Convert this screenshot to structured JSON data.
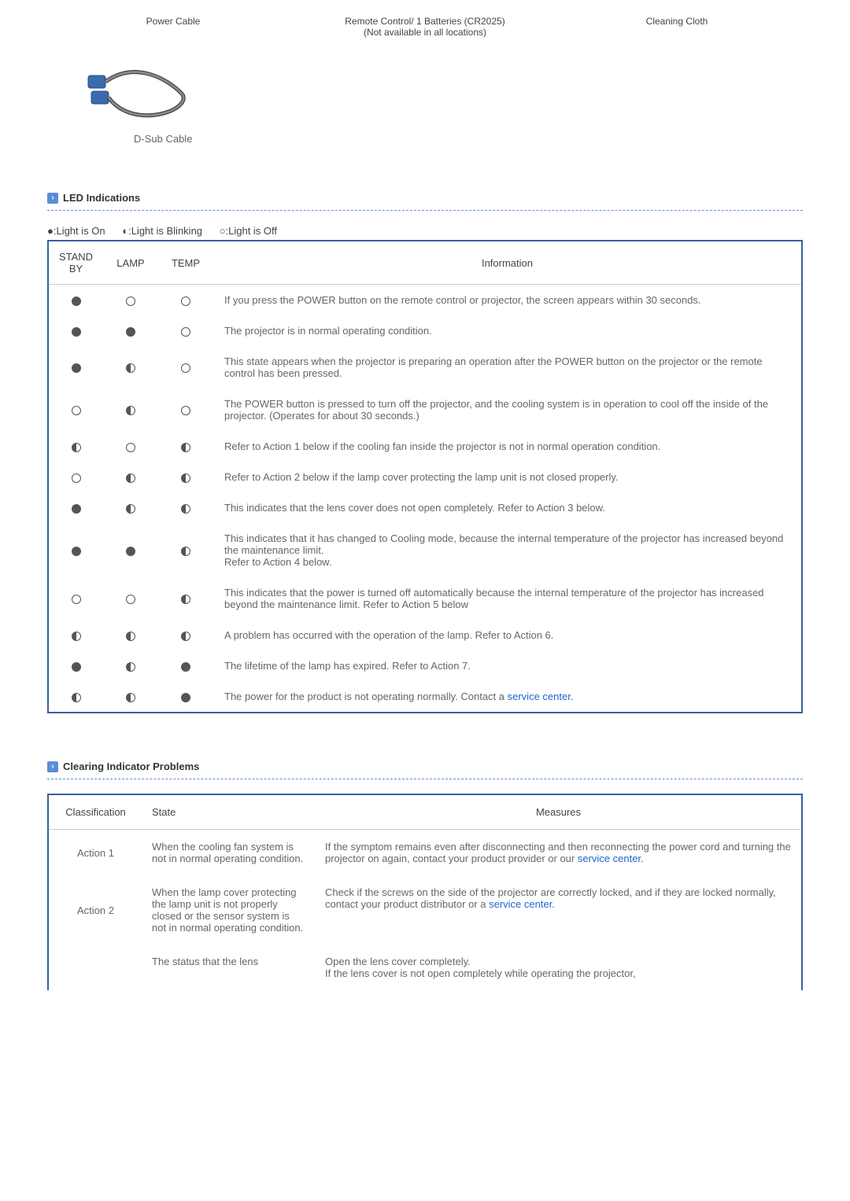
{
  "topLabels": {
    "left": "Power Cable",
    "mid_line1": "Remote Control/ 1 Batteries (CR2025)",
    "mid_line2": "(Not available in all locations)",
    "right": "Cleaning Cloth"
  },
  "cableCaption": "D-Sub Cable",
  "sections": {
    "led": "LED Indications",
    "clearing": "Clearing Indicator Problems"
  },
  "legend": {
    "on": "●:Light is On",
    "blink": "◐:Light is Blinking",
    "off": "○:Light is Off"
  },
  "ledHeaders": {
    "standby": "STAND BY",
    "lamp": "LAMP",
    "temp": "TEMP",
    "info": "Information"
  },
  "ledRows": [
    {
      "s": "on",
      "l": "off",
      "t": "off",
      "info": "If you press the POWER button on the remote control or projector, the screen appears within 30 seconds."
    },
    {
      "s": "on",
      "l": "on",
      "t": "off",
      "info": "The projector is in normal operating condition."
    },
    {
      "s": "on",
      "l": "blink",
      "t": "off",
      "info": "This state appears when the projector is preparing an operation after the POWER button on the projector or the remote control has been pressed."
    },
    {
      "s": "off",
      "l": "blink",
      "t": "off",
      "info": "The POWER button is pressed to turn off the projector, and the cooling system is in operation to cool off the inside of the projector. (Operates for about 30 seconds.)"
    },
    {
      "s": "blink",
      "l": "off",
      "t": "blink",
      "info": "Refer to Action 1 below if the cooling fan inside the projector is not in normal operation condition."
    },
    {
      "s": "off",
      "l": "blink",
      "t": "blink",
      "info": "Refer to Action 2 below if the lamp cover protecting the lamp unit is not closed properly."
    },
    {
      "s": "on",
      "l": "blink",
      "t": "blink",
      "info": "This indicates that the lens cover does not open completely. Refer to Action 3 below."
    },
    {
      "s": "on",
      "l": "on",
      "t": "blink",
      "info": "This indicates that it has changed to Cooling mode, because the internal temperature of the projector has increased beyond the maintenance limit.\nRefer to Action 4 below."
    },
    {
      "s": "off",
      "l": "off",
      "t": "blink",
      "info": "This indicates that the power is turned off automatically because the internal temperature of the projector has increased beyond the maintenance limit. Refer to Action 5 below"
    },
    {
      "s": "blink",
      "l": "blink",
      "t": "blink",
      "info": "A problem has occurred with the operation of the lamp. Refer to Action 6."
    },
    {
      "s": "on",
      "l": "blink",
      "t": "on",
      "info": "The lifetime of the lamp has expired. Refer to Action 7."
    },
    {
      "s": "blink",
      "l": "blink",
      "t": "on",
      "info": "The power for the product is not operating normally. Contact a ",
      "link": "service center."
    }
  ],
  "actionsHeaders": {
    "classification": "Classification",
    "state": "State",
    "measures": "Measures"
  },
  "actions": [
    {
      "cls": "Action 1",
      "state": "When the cooling fan system is not in normal operating condition.",
      "measure_pre": "If the symptom remains even after disconnecting and then reconnecting the power cord and turning the projector on again, contact your product provider or our ",
      "link": "service center."
    },
    {
      "cls": "Action 2",
      "state": "When the lamp cover protecting the lamp unit is not properly closed or the sensor system is not in normal operating condition.",
      "measure_pre": "Check if the screws on the side of the projector are correctly locked, and if they are locked normally, contact your product distributor or a ",
      "link": "service center."
    },
    {
      "cls": "",
      "state": "The status that the lens",
      "measure_pre": "Open the lens cover completely.\nIf the lens cover is not open completely while operating the projector,",
      "link": ""
    }
  ],
  "colors": {
    "accent": "#5b8dd6",
    "border": "#3a5fa0",
    "text": "#666666",
    "link": "#2266cc"
  }
}
